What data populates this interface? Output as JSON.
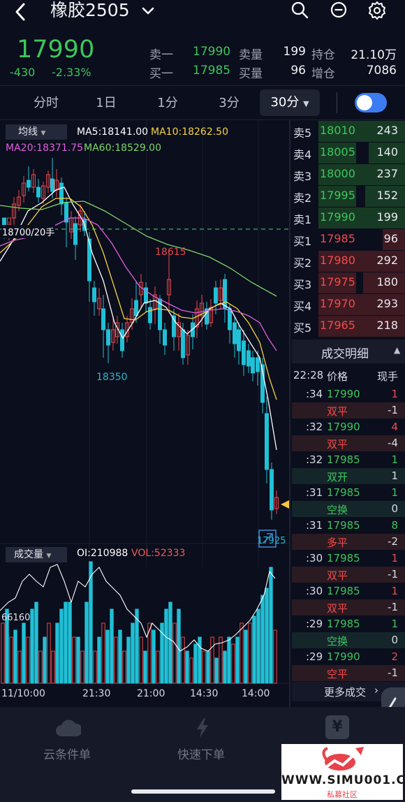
{
  "header": {
    "title": "橡胶2505"
  },
  "quote": {
    "price": "17990",
    "change": "-430",
    "change_pct": "-2.33%",
    "ask1_label": "卖一",
    "ask1_price": "17990",
    "ask_vol_label": "卖量",
    "ask_vol": "199",
    "bid1_label": "买一",
    "bid1_price": "17985",
    "bid_vol_label": "买量",
    "bid_vol": "96",
    "oi_label": "持仓",
    "oi": "21.10万",
    "oi_chg_label": "增仓",
    "oi_chg": "7086"
  },
  "tabs": [
    "分时",
    "1日",
    "1分",
    "3分",
    "30分"
  ],
  "chart": {
    "ma_dropdown": "均线",
    "ma5": "MA5:18141.00",
    "ma10": "MA10:18262.50",
    "ma20": "MA20:18371.75",
    "ma60": "MA60:18529.00",
    "order_line_label": "18700/20手",
    "high_label": "18615",
    "low_label": "18350",
    "last_low_label": "17925",
    "volume_dropdown": "成交量",
    "oi_text": "OI:210988",
    "vol_text": "VOL:52333",
    "vol_axis_label": "66160",
    "x_labels": [
      "11/10:00",
      "21:30",
      "21:00",
      "14:30",
      "14:00"
    ],
    "colors": {
      "up": "#e8484b",
      "down": "#21c0d6",
      "ma5": "#ffffff",
      "ma10": "#f5d442",
      "ma20": "#e05ee0",
      "ma60": "#7cd66a"
    }
  },
  "orderbook": {
    "asks": [
      {
        "label": "卖5",
        "price": "18010",
        "vol": "243",
        "depth": 0.74
      },
      {
        "label": "卖4",
        "price": "18005",
        "vol": "140",
        "depth": 0.43
      },
      {
        "label": "卖3",
        "price": "18000",
        "vol": "237",
        "depth": 0.72
      },
      {
        "label": "卖2",
        "price": "17995",
        "vol": "152",
        "depth": 0.47
      },
      {
        "label": "卖1",
        "price": "17990",
        "vol": "199",
        "depth": 0.61
      }
    ],
    "bids": [
      {
        "label": "买1",
        "price": "17985",
        "vol": "96",
        "depth": 0.26
      },
      {
        "label": "买2",
        "price": "17980",
        "vol": "292",
        "depth": 0.78
      },
      {
        "label": "买3",
        "price": "17975",
        "vol": "180",
        "depth": 0.49
      },
      {
        "label": "买4",
        "price": "17970",
        "vol": "293",
        "depth": 0.78
      },
      {
        "label": "买5",
        "price": "17965",
        "vol": "218",
        "depth": 0.58
      }
    ]
  },
  "deals": {
    "title": "成交明细",
    "time_head": "22:28",
    "price_head": "价格",
    "vol_head": "现手",
    "rows": [
      {
        "time": ":34",
        "price": "17990",
        "vol": "1",
        "type": "双平",
        "oi_chg": "-1"
      },
      {
        "time": ":32",
        "price": "17990",
        "vol": "4",
        "type": "双平",
        "oi_chg": "-4"
      },
      {
        "time": ":32",
        "price": "17985",
        "vol": "1",
        "type": "双开",
        "oi_chg": "1"
      },
      {
        "time": ":31",
        "price": "17985",
        "vol": "1",
        "type": "空换",
        "oi_chg": "0"
      },
      {
        "time": ":31",
        "price": "17985",
        "vol": "8",
        "type": "多平",
        "oi_chg": "-2"
      },
      {
        "time": ":30",
        "price": "17985",
        "vol": "1",
        "type": "双平",
        "oi_chg": "-1"
      },
      {
        "time": ":30",
        "price": "17985",
        "vol": "1",
        "type": "双平",
        "oi_chg": "-1"
      },
      {
        "time": ":29",
        "price": "17985",
        "vol": "1",
        "type": "空换",
        "oi_chg": "0"
      },
      {
        "time": ":29",
        "price": "17990",
        "vol": "2",
        "type": "空平",
        "oi_chg": "-1"
      }
    ],
    "more": "更多成交"
  },
  "bottom": {
    "cloud": "云条件单",
    "quick": "快速下单"
  },
  "watermark": {
    "site": "WWW.SIMU001.CN",
    "sub": "私募社区"
  }
}
